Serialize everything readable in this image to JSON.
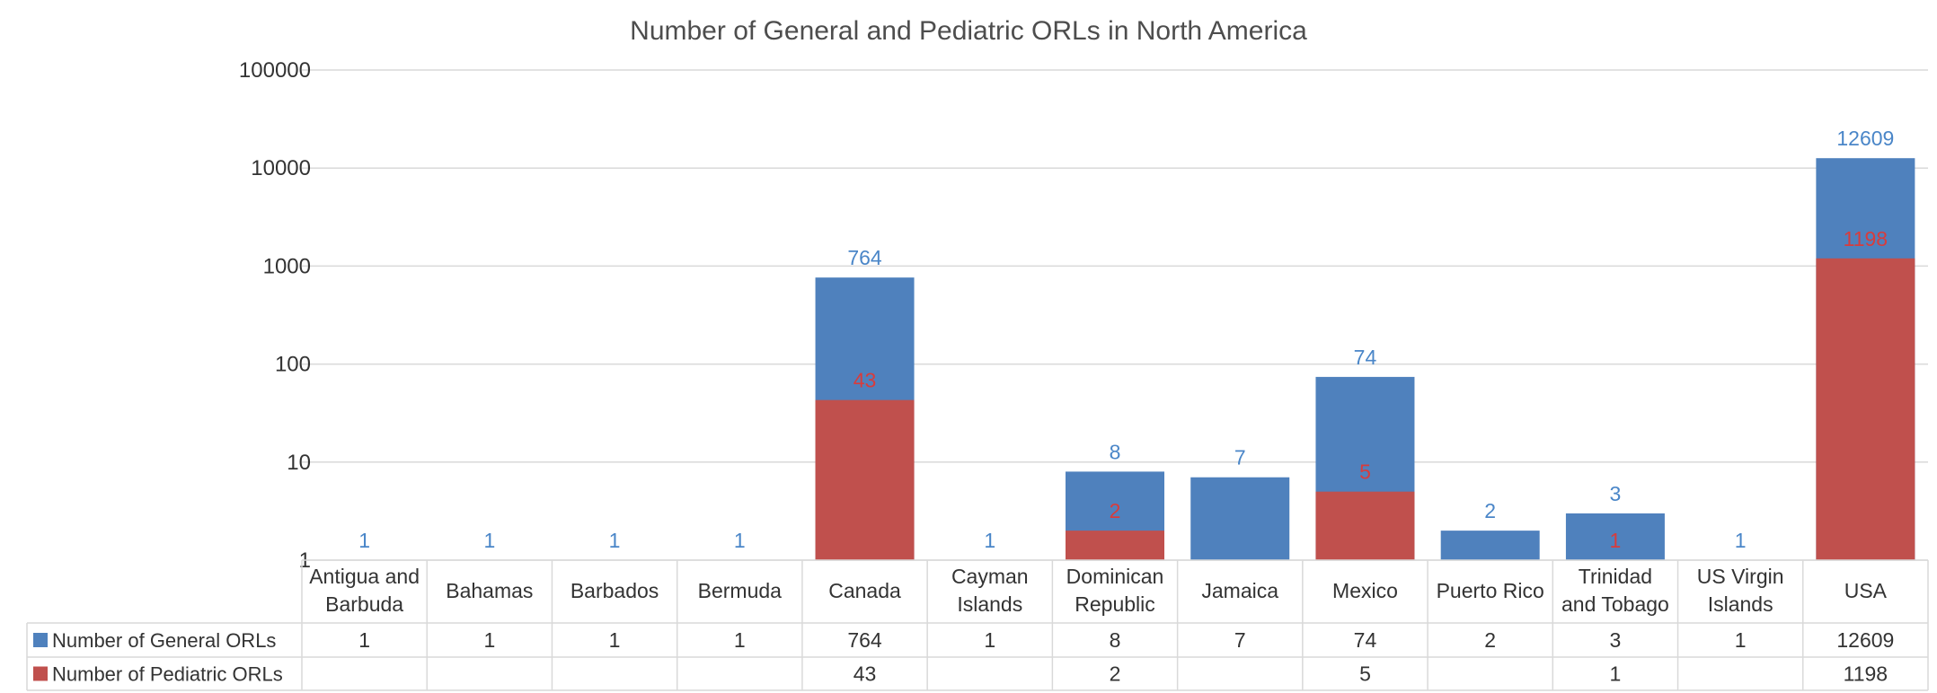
{
  "chart_data": {
    "type": "bar",
    "stacked": false,
    "overlapped": true,
    "yscale": "log",
    "title": "Number of General and Pediatric ORLs in North America",
    "xlabel": "",
    "ylabel": "",
    "ylim": [
      1,
      100000
    ],
    "yticks": [
      "1",
      "10",
      "100",
      "1000",
      "10000",
      "100000"
    ],
    "grid": true,
    "legend": "data-table",
    "categories": [
      [
        "Antigua and",
        "Barbuda"
      ],
      [
        "Bahamas"
      ],
      [
        "Barbados"
      ],
      [
        "Bermuda"
      ],
      [
        "Canada"
      ],
      [
        "Cayman",
        "Islands"
      ],
      [
        "Dominican",
        "Republic"
      ],
      [
        "Jamaica"
      ],
      [
        "Mexico"
      ],
      [
        "Puerto Rico"
      ],
      [
        "Trinidad",
        "and Tobago"
      ],
      [
        "US Virgin",
        "Islands"
      ],
      [
        "USA"
      ]
    ],
    "series": [
      {
        "name": "Number of General ORLs",
        "color": "#4f81bd",
        "label_color": "#4a86c8",
        "values": [
          1,
          1,
          1,
          1,
          764,
          1,
          8,
          7,
          74,
          2,
          3,
          1,
          12609
        ]
      },
      {
        "name": "Number of Pediatric ORLs",
        "color": "#c0504d",
        "label_color": "#d83c3c",
        "values": [
          null,
          null,
          null,
          null,
          43,
          null,
          2,
          null,
          5,
          null,
          1,
          null,
          1198
        ]
      }
    ]
  }
}
